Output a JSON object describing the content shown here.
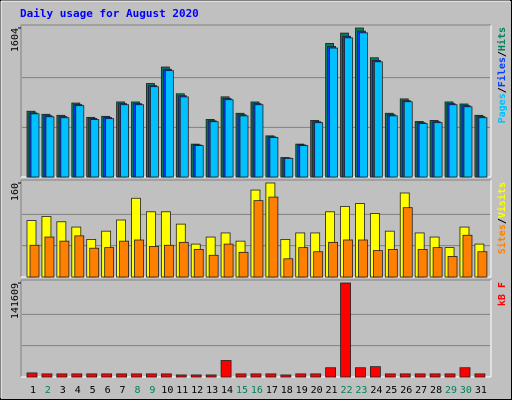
{
  "title": "Daily usage for August 2020",
  "chart_data": [
    {
      "type": "bar",
      "series": [
        {
          "name": "Hits",
          "color": "#00805c",
          "values": [
            708,
            675,
            664,
            796,
            642,
            653,
            808,
            808,
            1007,
            1184,
            896,
            354,
            620,
            863,
            686,
            808,
            443,
            210,
            354,
            609,
            1438,
            1549,
            1604,
            1284,
            686,
            841,
            598,
            609,
            808,
            786,
            664
          ]
        },
        {
          "name": "Files",
          "color": "#0040ff",
          "values": [
            690,
            660,
            650,
            780,
            630,
            640,
            790,
            790,
            985,
            1160,
            875,
            345,
            605,
            845,
            670,
            790,
            432,
            205,
            345,
            595,
            1405,
            1515,
            1570,
            1255,
            670,
            822,
            585,
            595,
            790,
            768,
            650
          ]
        },
        {
          "name": "Pages",
          "color": "#00c0ff",
          "values": [
            680,
            648,
            638,
            768,
            618,
            628,
            778,
            778,
            972,
            1145,
            862,
            338,
            595,
            832,
            658,
            778,
            425,
            200,
            338,
            585,
            1388,
            1498,
            1552,
            1240,
            658,
            810,
            575,
            585,
            778,
            756,
            638
          ]
        }
      ],
      "ylim": [
        0,
        1604
      ],
      "yticks": [
        1604
      ],
      "grid_lines": 3,
      "legend_separator": "/"
    },
    {
      "type": "bar",
      "series": [
        {
          "name": "Visits",
          "color": "#ffff00",
          "values": [
            96,
            103,
            94,
            85,
            64,
            78,
            97,
            134,
            111,
            111,
            90,
            56,
            68,
            75,
            61,
            148,
            160,
            64,
            75,
            75,
            111,
            120,
            125,
            108,
            78,
            143,
            75,
            68,
            50,
            85,
            56
          ]
        },
        {
          "name": "Sites",
          "color": "#ff8000",
          "values": [
            54,
            68,
            61,
            70,
            49,
            50,
            61,
            63,
            52,
            54,
            59,
            47,
            37,
            56,
            42,
            130,
            136,
            31,
            50,
            43,
            59,
            63,
            63,
            45,
            47,
            118,
            47,
            50,
            35,
            71,
            43
          ]
        }
      ],
      "ylim": [
        0,
        160
      ],
      "yticks": [
        160
      ],
      "grid_lines": 3,
      "legend_separator": "/"
    },
    {
      "type": "bar",
      "series": [
        {
          "name": "kB F",
          "color": "#ff0000",
          "values": [
            6200,
            4700,
            4700,
            4700,
            4700,
            4700,
            4700,
            4700,
            4700,
            4700,
            3100,
            3100,
            3100,
            24900,
            4700,
            4700,
            4700,
            3100,
            4700,
            4700,
            14000,
            141609,
            14000,
            15600,
            4700,
            4700,
            4700,
            4700,
            4700,
            14000,
            4700
          ]
        }
      ],
      "ylim": [
        0,
        141609
      ],
      "yticks": [
        141609
      ],
      "grid_lines": 3,
      "categories": [
        "1",
        "2",
        "3",
        "4",
        "5",
        "6",
        "7",
        "8",
        "9",
        "10",
        "11",
        "12",
        "13",
        "14",
        "15",
        "16",
        "17",
        "18",
        "19",
        "20",
        "21",
        "22",
        "23",
        "24",
        "25",
        "26",
        "27",
        "28",
        "29",
        "30",
        "31"
      ],
      "category_colors": [
        "#000000",
        "#00805c",
        "#000000",
        "#000000",
        "#000000",
        "#000000",
        "#000000",
        "#00805c",
        "#00805c",
        "#000000",
        "#000000",
        "#000000",
        "#000000",
        "#000000",
        "#00805c",
        "#00805c",
        "#000000",
        "#000000",
        "#000000",
        "#000000",
        "#000000",
        "#00805c",
        "#00805c",
        "#000000",
        "#000000",
        "#000000",
        "#000000",
        "#000000",
        "#00805c",
        "#00805c",
        "#000000"
      ]
    }
  ]
}
